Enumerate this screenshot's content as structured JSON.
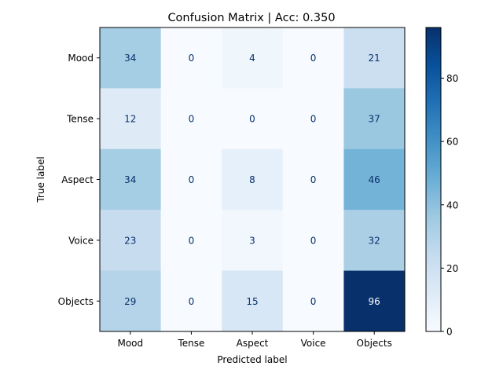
{
  "chart_data": {
    "type": "heatmap",
    "title": "Confusion Matrix | Acc: 0.350",
    "xlabel": "Predicted label",
    "ylabel": "True label",
    "x_categories": [
      "Mood",
      "Tense",
      "Aspect",
      "Voice",
      "Objects"
    ],
    "y_categories": [
      "Mood",
      "Tense",
      "Aspect",
      "Voice",
      "Objects"
    ],
    "values": [
      [
        34,
        0,
        4,
        0,
        21
      ],
      [
        12,
        0,
        0,
        0,
        37
      ],
      [
        34,
        0,
        8,
        0,
        46
      ],
      [
        23,
        0,
        3,
        0,
        32
      ],
      [
        29,
        0,
        15,
        0,
        96
      ]
    ],
    "colormap": "Blues",
    "color_range": [
      0,
      96
    ],
    "colorbar_ticks": [
      0,
      20,
      40,
      60,
      80
    ],
    "grid": false,
    "legend": "colorbar-right"
  }
}
